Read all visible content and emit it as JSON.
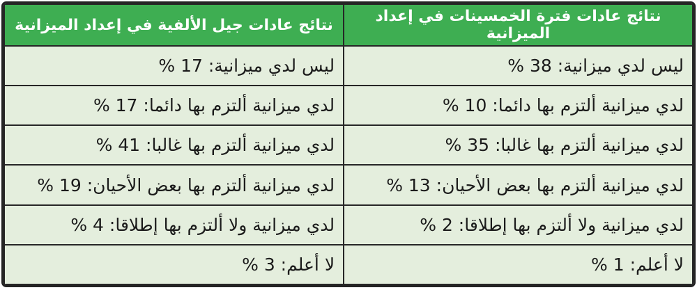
{
  "colors": {
    "header_green": "#3eae52",
    "row_background": "#e4eedd",
    "border_dark": "#262626",
    "header_text": "#ffffff",
    "cell_text": "#1b1b1b"
  },
  "table": {
    "direction": "rtl",
    "columns": [
      {
        "id": "fifties",
        "header": "نتائج عادات فترة الخمسينات في إعداد الميزانية",
        "cells": [
          "ليس لدي ميزانية: 38 %",
          "لدي ميزانية ألتزم بها دائما: 10 %",
          "لدي ميزانية ألتزم بها غالبا: 35 %",
          "لدي ميزانية ألتزم بها بعض الأحيان: 13 %",
          "لدي ميزانية ولا ألتزم بها إطلاقا: 2 %",
          "لا أعلم: 1 %"
        ]
      },
      {
        "id": "millennials",
        "header": "نتائج عادات جيل الألفية في إعداد الميزانية",
        "cells": [
          "ليس لدي ميزانية: 17 %",
          "لدي ميزانية ألتزم بها دائما: 17 %",
          "لدي ميزانية ألتزم بها غالبا: 41 %",
          "لدي ميزانية ألتزم بها بعض الأحيان: 19 %",
          "لدي ميزانية ولا ألتزم بها إطلاقا: 4 %",
          "لا أعلم: 3 %"
        ]
      }
    ]
  },
  "chart_data": {
    "type": "table",
    "title": "",
    "unit": "%",
    "categories": [
      "ليس لدي ميزانية",
      "لدي ميزانية ألتزم بها دائما",
      "لدي ميزانية ألتزم بها غالبا",
      "لدي ميزانية ألتزم بها بعض الأحيان",
      "لدي ميزانية ولا ألتزم بها إطلاقا",
      "لا أعلم"
    ],
    "series": [
      {
        "name": "نتائج عادات فترة الخمسينات في إعداد الميزانية",
        "values": [
          38,
          10,
          35,
          13,
          2,
          1
        ]
      },
      {
        "name": "نتائج عادات جيل الألفية في إعداد الميزانية",
        "values": [
          17,
          17,
          41,
          19,
          4,
          3
        ]
      }
    ],
    "layout_hints": {
      "orientation": "two-column comparison table, RTL",
      "header_style": "green background, white bold text",
      "body_style": "pale green cells, dark thin borders"
    }
  }
}
